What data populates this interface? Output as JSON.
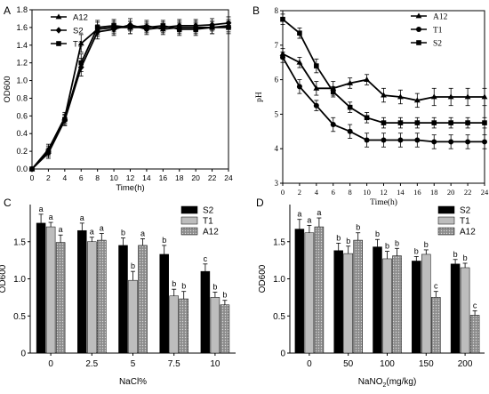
{
  "figure": {
    "panel_letters": [
      "A",
      "B",
      "C",
      "D"
    ]
  },
  "chart_data": [
    {
      "panel": "A",
      "type": "line",
      "xlabel": "Time(h)",
      "ylabel": "OD600",
      "xlim": [
        0,
        24
      ],
      "ylim": [
        0,
        1.8
      ],
      "xticks": [
        0,
        2,
        4,
        6,
        8,
        10,
        12,
        14,
        16,
        18,
        20,
        22,
        24
      ],
      "yticks": [
        "0.0",
        "0.2",
        "0.4",
        "0.6",
        "0.8",
        "1.0",
        "1.2",
        "1.4",
        "1.6",
        "1.8"
      ],
      "legend_position": "top-left",
      "x": [
        0,
        2,
        4,
        6,
        8,
        10,
        12,
        14,
        16,
        18,
        20,
        22,
        24
      ],
      "series": [
        {
          "name": "A12",
          "marker": "triangle",
          "values": [
            0.0,
            0.22,
            0.58,
            1.42,
            1.58,
            1.6,
            1.6,
            1.62,
            1.58,
            1.6,
            1.6,
            1.6,
            1.62
          ],
          "errors": [
            0.01,
            0.06,
            0.06,
            0.1,
            0.08,
            0.07,
            0.07,
            0.06,
            0.06,
            0.07,
            0.07,
            0.07,
            0.07
          ]
        },
        {
          "name": "S2",
          "marker": "diamond",
          "values": [
            0.0,
            0.18,
            0.55,
            1.15,
            1.55,
            1.58,
            1.63,
            1.58,
            1.6,
            1.62,
            1.62,
            1.63,
            1.65
          ],
          "errors": [
            0.01,
            0.06,
            0.06,
            0.1,
            0.08,
            0.07,
            0.07,
            0.06,
            0.06,
            0.07,
            0.07,
            0.07,
            0.07
          ]
        },
        {
          "name": "T1",
          "marker": "square",
          "values": [
            0.0,
            0.2,
            0.56,
            1.2,
            1.6,
            1.62,
            1.6,
            1.6,
            1.62,
            1.58,
            1.58,
            1.6,
            1.6
          ],
          "errors": [
            0.01,
            0.06,
            0.06,
            0.1,
            0.08,
            0.07,
            0.07,
            0.06,
            0.06,
            0.07,
            0.07,
            0.07,
            0.07
          ]
        }
      ]
    },
    {
      "panel": "B",
      "type": "line",
      "xlabel": "Time(h)",
      "ylabel": "pH",
      "xlim": [
        0,
        24
      ],
      "ylim": [
        3,
        8
      ],
      "xticks": [
        0,
        2,
        4,
        6,
        8,
        10,
        12,
        14,
        16,
        18,
        20,
        22,
        24
      ],
      "yticks": [
        "3",
        "4",
        "5",
        "6",
        "7",
        "8"
      ],
      "legend_position": "top-right",
      "x": [
        0,
        2,
        4,
        6,
        8,
        10,
        12,
        14,
        16,
        18,
        20,
        22,
        24
      ],
      "series": [
        {
          "name": "A12",
          "marker": "triangle",
          "values": [
            6.75,
            6.5,
            5.75,
            5.75,
            5.9,
            6.0,
            5.55,
            5.5,
            5.4,
            5.5,
            5.5,
            5.5,
            5.5
          ],
          "errors": [
            0.15,
            0.15,
            0.2,
            0.2,
            0.15,
            0.15,
            0.2,
            0.2,
            0.2,
            0.25,
            0.25,
            0.25,
            0.25
          ]
        },
        {
          "name": "T1",
          "marker": "circle",
          "values": [
            6.65,
            5.8,
            5.25,
            4.7,
            4.5,
            4.25,
            4.25,
            4.25,
            4.25,
            4.2,
            4.2,
            4.2,
            4.2
          ],
          "errors": [
            0.15,
            0.2,
            0.15,
            0.2,
            0.2,
            0.2,
            0.2,
            0.2,
            0.2,
            0.2,
            0.2,
            0.2,
            0.2
          ]
        },
        {
          "name": "S2",
          "marker": "square",
          "values": [
            7.75,
            7.35,
            6.4,
            5.65,
            5.2,
            4.9,
            4.75,
            4.75,
            4.75,
            4.75,
            4.75,
            4.75,
            4.75
          ],
          "errors": [
            0.15,
            0.15,
            0.2,
            0.15,
            0.15,
            0.15,
            0.15,
            0.15,
            0.15,
            0.15,
            0.15,
            0.15,
            0.15
          ]
        }
      ]
    },
    {
      "panel": "C",
      "type": "bar",
      "xlabel": "NaCl%",
      "ylabel": "OD600",
      "ylim": [
        0,
        2.0
      ],
      "yticks": [
        "0",
        "0.5",
        "1.0",
        "1.5"
      ],
      "categories": [
        "0",
        "2.5",
        "5",
        "7.5",
        "10"
      ],
      "legend_position": "top-right",
      "series": [
        {
          "name": "S2",
          "fill": "#000000",
          "values": [
            1.75,
            1.65,
            1.45,
            1.33,
            1.1
          ],
          "errors": [
            0.12,
            0.1,
            0.1,
            0.12,
            0.1
          ],
          "letters": [
            "a",
            "a",
            "b",
            "b",
            "c"
          ]
        },
        {
          "name": "T1",
          "fill": "#bdbdbd",
          "values": [
            1.7,
            1.5,
            0.98,
            0.77,
            0.75
          ],
          "errors": [
            0.06,
            0.06,
            0.12,
            0.09,
            0.07
          ],
          "letters": [
            "a",
            "a",
            "b",
            "b",
            "b"
          ]
        },
        {
          "name": "A12",
          "fill": "#8c8c8c",
          "values": [
            1.49,
            1.52,
            1.45,
            0.73,
            0.65
          ],
          "errors": [
            0.1,
            0.09,
            0.09,
            0.1,
            0.06
          ],
          "letters": [
            "a",
            "a",
            "a",
            "b",
            "b"
          ]
        }
      ]
    },
    {
      "panel": "D",
      "type": "bar",
      "xlabel_parts": [
        "NaNO",
        "2",
        "(mg/kg)"
      ],
      "ylabel": "OD600",
      "ylim": [
        0,
        2.0
      ],
      "yticks": [
        "0",
        "0.5",
        "1.0",
        "1.5"
      ],
      "categories": [
        "0",
        "50",
        "100",
        "150",
        "200"
      ],
      "legend_position": "top-right",
      "series": [
        {
          "name": "S2",
          "fill": "#000000",
          "values": [
            1.67,
            1.38,
            1.43,
            1.24,
            1.2
          ],
          "errors": [
            0.13,
            0.1,
            0.1,
            0.06,
            0.06
          ],
          "letters": [
            "a",
            "b",
            "b",
            "b",
            "b"
          ]
        },
        {
          "name": "T1",
          "fill": "#bdbdbd",
          "values": [
            1.62,
            1.34,
            1.27,
            1.33,
            1.15
          ],
          "errors": [
            0.1,
            0.1,
            0.1,
            0.06,
            0.06
          ],
          "letters": [
            "a",
            "b",
            "b",
            "b",
            "b"
          ]
        },
        {
          "name": "A12",
          "fill": "#8c8c8c",
          "values": [
            1.7,
            1.52,
            1.31,
            0.75,
            0.51
          ],
          "errors": [
            0.12,
            0.1,
            0.1,
            0.08,
            0.06
          ],
          "letters": [
            "a",
            "b",
            "b",
            "c",
            "c"
          ]
        }
      ]
    }
  ]
}
